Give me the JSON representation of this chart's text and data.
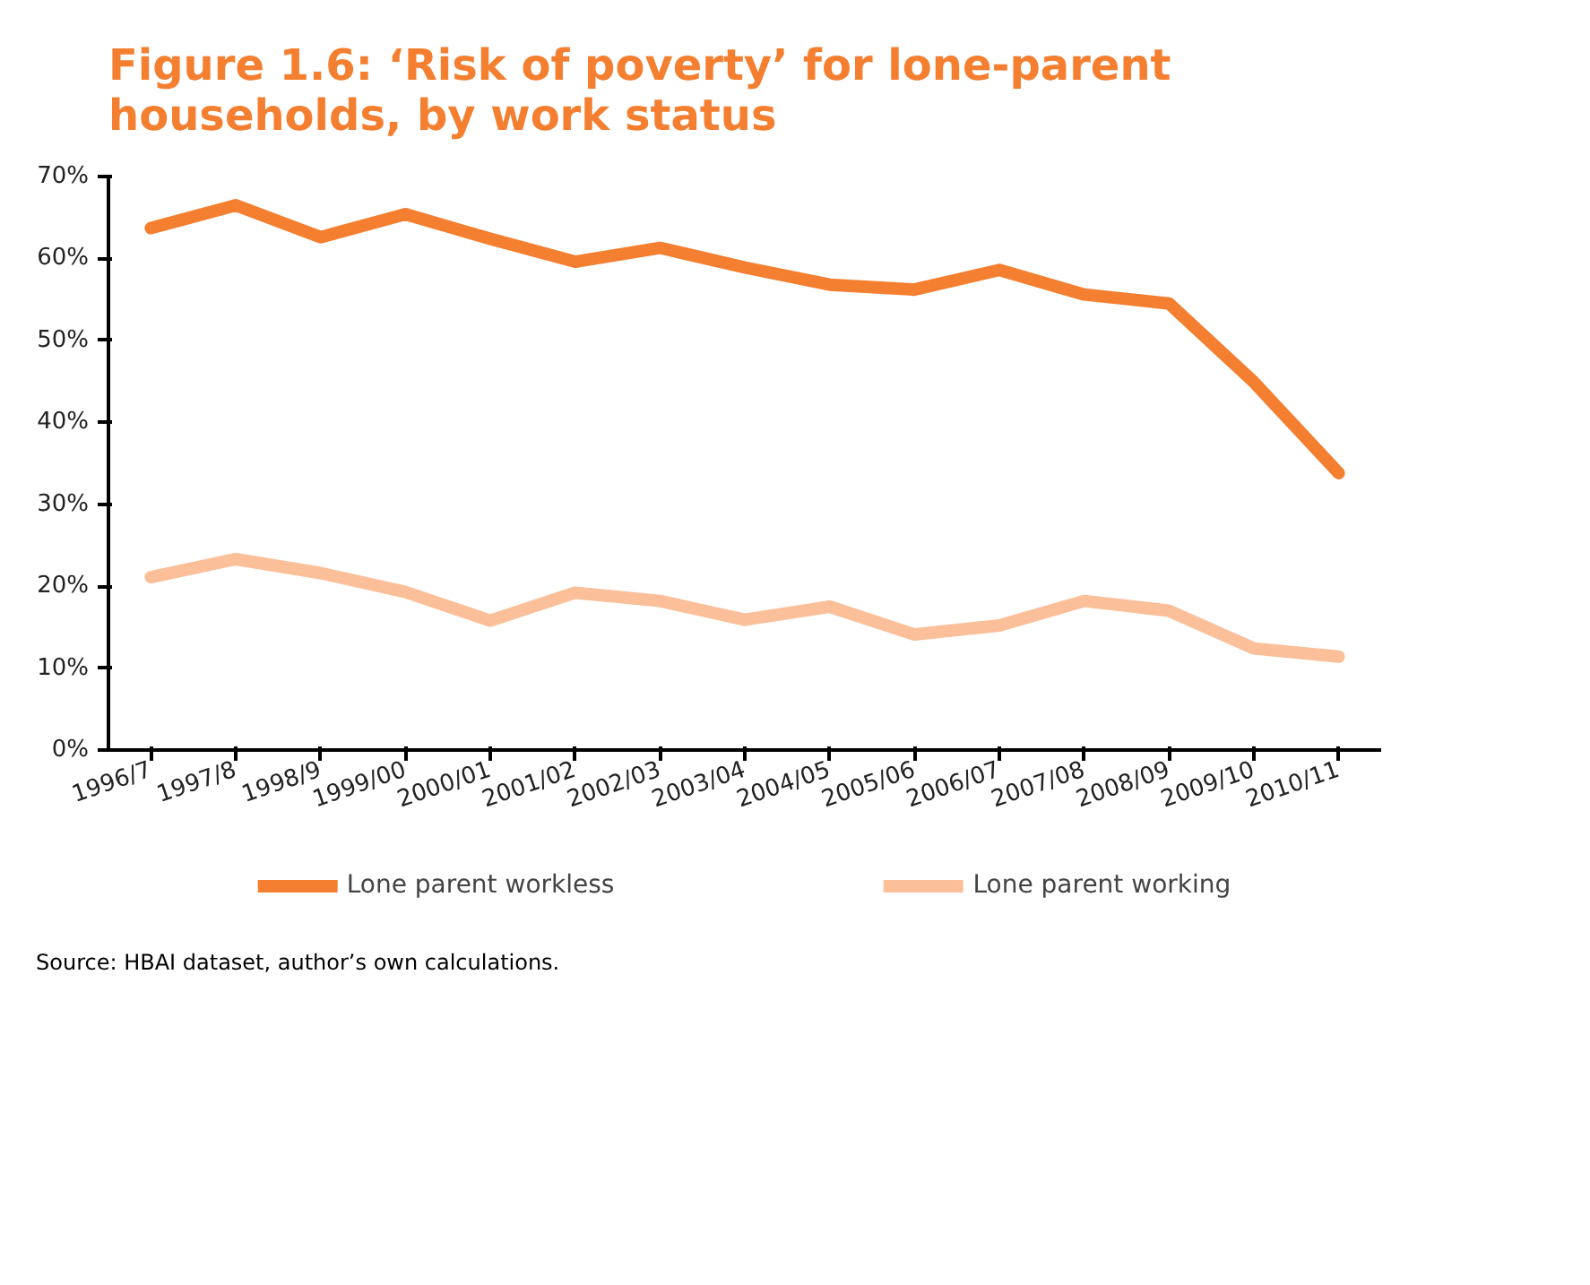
{
  "chart_data": {
    "type": "line",
    "title": "Figure 1.6: ‘Risk of poverty’ for lone-parent households, by work status",
    "categories": [
      "1996/7",
      "1997/8",
      "1998/9",
      "1999/00",
      "2000/01",
      "2001/02",
      "2002/03",
      "2003/04",
      "2004/05",
      "2005/06",
      "2006/07",
      "2007/08",
      "2008/09",
      "2009/10",
      "2010/11"
    ],
    "series": [
      {
        "name": "Lone parent workless",
        "color": "#f47f30",
        "values": [
          63.7,
          66.5,
          62.6,
          65.4,
          62.4,
          59.6,
          61.3,
          58.9,
          56.8,
          56.2,
          58.6,
          55.6,
          54.5,
          44.9,
          33.8
        ]
      },
      {
        "name": "Lone parent working",
        "color": "#fbbf99",
        "values": [
          21.1,
          23.3,
          21.6,
          19.3,
          15.8,
          19.2,
          18.2,
          15.9,
          17.5,
          14.1,
          15.2,
          18.2,
          17.0,
          12.4,
          11.4
        ]
      }
    ],
    "ylim": [
      0,
      70
    ],
    "yticks": [
      {
        "value": 0,
        "label": "0%"
      },
      {
        "value": 10,
        "label": "10%"
      },
      {
        "value": 20,
        "label": "20%"
      },
      {
        "value": 30,
        "label": "30%"
      },
      {
        "value": 40,
        "label": "40%"
      },
      {
        "value": 50,
        "label": "50%"
      },
      {
        "value": 60,
        "label": "60%"
      },
      {
        "value": 70,
        "label": "70%"
      }
    ],
    "grid": false,
    "legend": "bottom",
    "marker": "none",
    "line_style": "solid",
    "annotations": [
      "Source: HBAI dataset, author’s own calculations."
    ]
  }
}
